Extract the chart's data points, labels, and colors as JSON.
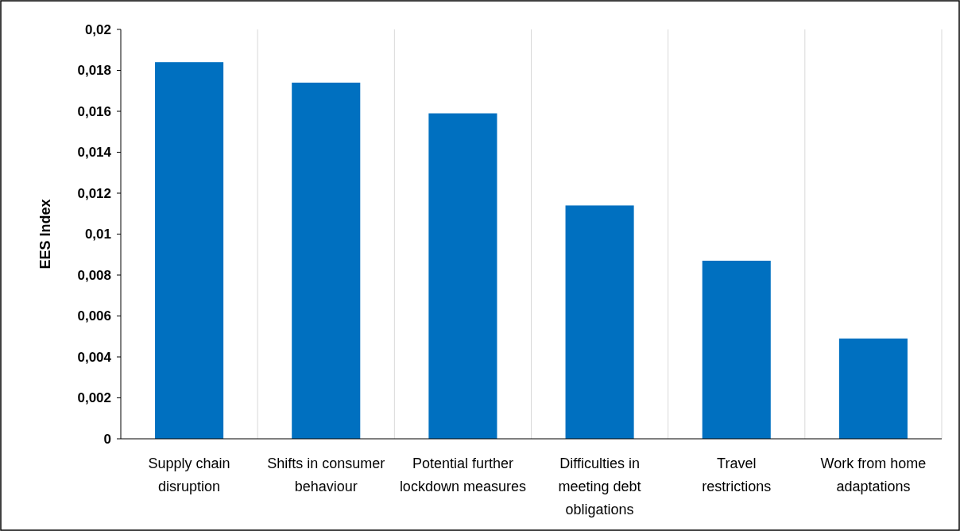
{
  "chart_data": {
    "type": "bar",
    "ylabel": "EES Index",
    "categories": [
      "Supply chain disruption",
      "Shifts in consumer behaviour",
      "Potential further lockdown measures",
      "Difficulties in meeting debt obligations",
      "Travel restrictions",
      "Work from home adaptations"
    ],
    "values": [
      0.0184,
      0.0174,
      0.0159,
      0.0114,
      0.0087,
      0.0049
    ],
    "color": "#0070c0",
    "ylim": [
      0,
      0.02
    ],
    "yticks": [
      0,
      {
        "value": 0.002,
        "label": "0,002"
      },
      {
        "value": 0.004,
        "label": "0,004"
      },
      {
        "value": 0.006,
        "label": "0,006"
      },
      {
        "value": 0.008,
        "label": "0,008"
      },
      {
        "value": 0.01,
        "label": "0,01"
      },
      {
        "value": 0.012,
        "label": "0,012"
      },
      {
        "value": 0.014,
        "label": "0,014"
      },
      {
        "value": 0.016,
        "label": "0,016"
      },
      {
        "value": 0.018,
        "label": "0,018"
      },
      {
        "value": 0.02,
        "label": "0,02"
      }
    ],
    "grid": "x"
  }
}
